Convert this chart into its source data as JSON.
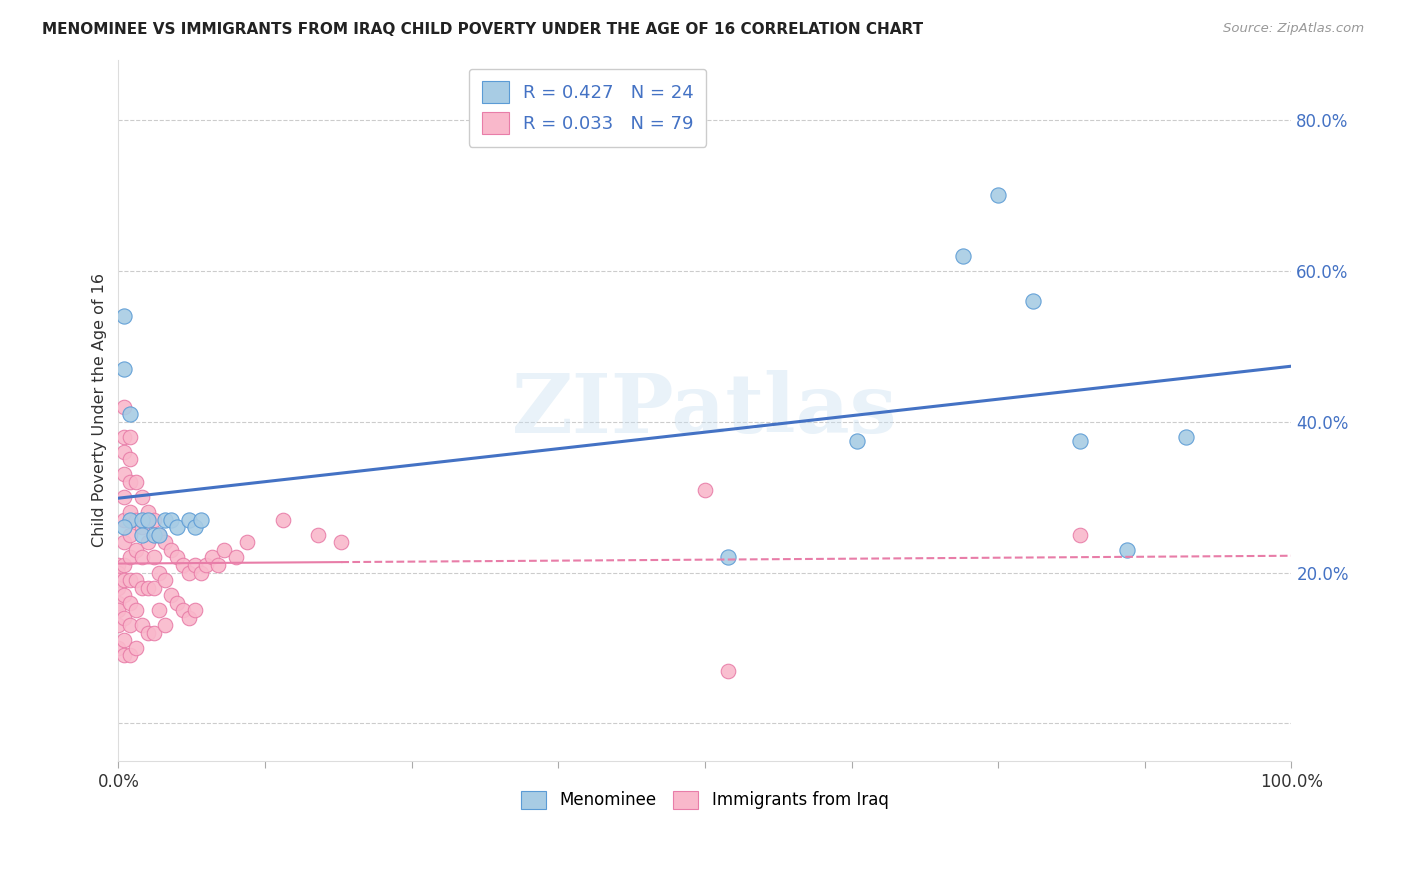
{
  "title": "MENOMINEE VS IMMIGRANTS FROM IRAQ CHILD POVERTY UNDER THE AGE OF 16 CORRELATION CHART",
  "source": "Source: ZipAtlas.com",
  "ylabel": "Child Poverty Under the Age of 16",
  "xlim": [
    0,
    1.0
  ],
  "ylim": [
    -0.05,
    0.88
  ],
  "ytick_positions": [
    0.0,
    0.2,
    0.4,
    0.6,
    0.8
  ],
  "ytick_labels": [
    "",
    "20.0%",
    "40.0%",
    "60.0%",
    "80.0%"
  ],
  "xtick_positions": [
    0.0,
    0.125,
    0.25,
    0.375,
    0.5,
    0.625,
    0.75,
    0.875,
    1.0
  ],
  "legend_label1": "R = 0.427   N = 24",
  "legend_label2": "R = 0.033   N = 79",
  "color_blue": "#a8cce4",
  "color_pink": "#f9b8cb",
  "edge_color_blue": "#5b9bd5",
  "edge_color_pink": "#e87da8",
  "line_color_blue": "#4472c4",
  "line_color_pink": "#e87da8",
  "watermark": "ZIPatlas",
  "legend_bottom": [
    "Menominee",
    "Immigrants from Iraq"
  ],
  "menominee_x": [
    0.005,
    0.005,
    0.01,
    0.01,
    0.02,
    0.02,
    0.025,
    0.03,
    0.035,
    0.04,
    0.045,
    0.05,
    0.06,
    0.065,
    0.07,
    0.63,
    0.72,
    0.75,
    0.78,
    0.82,
    0.86,
    0.52,
    0.91,
    0.005
  ],
  "menominee_y": [
    0.54,
    0.47,
    0.41,
    0.27,
    0.27,
    0.25,
    0.27,
    0.25,
    0.25,
    0.27,
    0.27,
    0.26,
    0.27,
    0.26,
    0.27,
    0.375,
    0.62,
    0.7,
    0.56,
    0.375,
    0.23,
    0.22,
    0.38,
    0.26
  ],
  "iraq_x": [
    0.0,
    0.0,
    0.0,
    0.0,
    0.0,
    0.0,
    0.0,
    0.0,
    0.005,
    0.005,
    0.005,
    0.005,
    0.005,
    0.005,
    0.005,
    0.005,
    0.005,
    0.005,
    0.005,
    0.005,
    0.005,
    0.01,
    0.01,
    0.01,
    0.01,
    0.01,
    0.01,
    0.01,
    0.01,
    0.01,
    0.01,
    0.015,
    0.015,
    0.015,
    0.015,
    0.015,
    0.015,
    0.02,
    0.02,
    0.02,
    0.02,
    0.02,
    0.025,
    0.025,
    0.025,
    0.025,
    0.03,
    0.03,
    0.03,
    0.03,
    0.035,
    0.035,
    0.035,
    0.04,
    0.04,
    0.04,
    0.045,
    0.045,
    0.05,
    0.05,
    0.055,
    0.055,
    0.06,
    0.06,
    0.065,
    0.065,
    0.07,
    0.075,
    0.08,
    0.085,
    0.09,
    0.1,
    0.11,
    0.14,
    0.17,
    0.19,
    0.5,
    0.82,
    0.52
  ],
  "iraq_y": [
    0.21,
    0.2,
    0.19,
    0.18,
    0.16,
    0.15,
    0.13,
    0.1,
    0.42,
    0.38,
    0.36,
    0.33,
    0.3,
    0.27,
    0.24,
    0.21,
    0.19,
    0.17,
    0.14,
    0.11,
    0.09,
    0.38,
    0.35,
    0.32,
    0.28,
    0.25,
    0.22,
    0.19,
    0.16,
    0.13,
    0.09,
    0.32,
    0.27,
    0.23,
    0.19,
    0.15,
    0.1,
    0.3,
    0.26,
    0.22,
    0.18,
    0.13,
    0.28,
    0.24,
    0.18,
    0.12,
    0.27,
    0.22,
    0.18,
    0.12,
    0.25,
    0.2,
    0.15,
    0.24,
    0.19,
    0.13,
    0.23,
    0.17,
    0.22,
    0.16,
    0.21,
    0.15,
    0.2,
    0.14,
    0.21,
    0.15,
    0.2,
    0.21,
    0.22,
    0.21,
    0.23,
    0.22,
    0.24,
    0.27,
    0.25,
    0.24,
    0.31,
    0.25,
    0.07
  ]
}
